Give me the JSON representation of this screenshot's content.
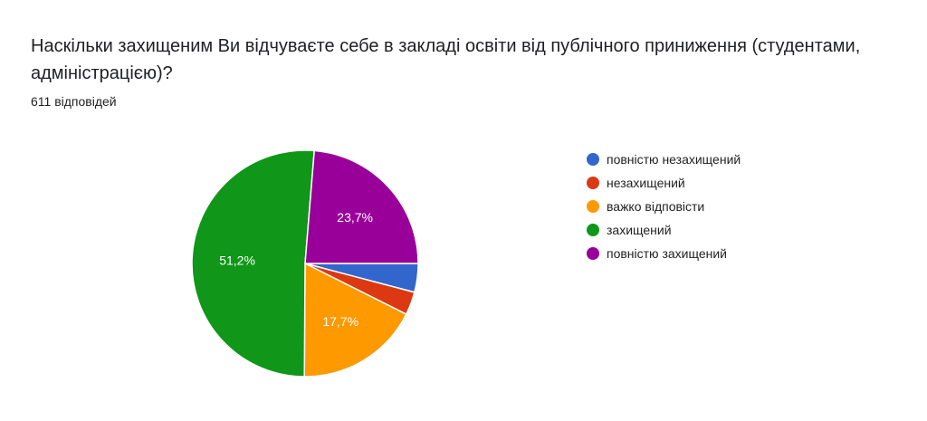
{
  "title": "Наскільки захищеним Ви відчуваєте себе в закладі освіти від публічного приниження (студентами, адміністрацією)?",
  "responses": "611 відповідей",
  "chart_data": {
    "type": "pie",
    "categories": [
      "повністю незахищений",
      "незахищений",
      "важко відповісти",
      "захищений",
      "повністю захищений"
    ],
    "values": [
      4.1,
      3.3,
      17.7,
      51.2,
      23.7
    ],
    "labels": [
      "",
      "",
      "17,7%",
      "51,2%",
      "23,7%"
    ],
    "colors": [
      "#3366cc",
      "#dc3912",
      "#ff9900",
      "#109618",
      "#990099"
    ],
    "legend": "right"
  }
}
